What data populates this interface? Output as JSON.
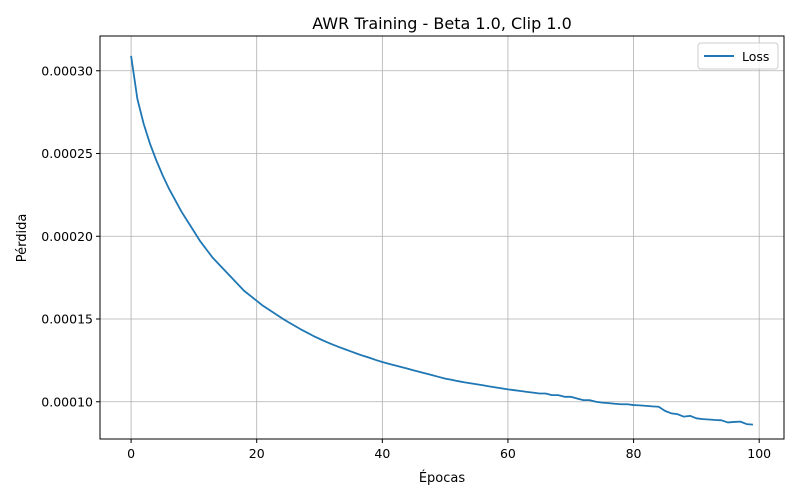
{
  "chart_data": {
    "type": "line",
    "title": "AWR Training - Beta 1.0, Clip 1.0",
    "xlabel": "Épocas",
    "ylabel": "Pérdida",
    "xlim": [
      -4.95,
      103.95
    ],
    "ylim": [
      7.75e-05,
      0.000321
    ],
    "xticks": [
      0,
      20,
      40,
      60,
      80,
      100
    ],
    "xtick_labels": [
      "0",
      "20",
      "40",
      "60",
      "80",
      "100"
    ],
    "yticks": [
      0.0001,
      0.00015,
      0.0002,
      0.00025,
      0.0003
    ],
    "ytick_labels": [
      "0.00010",
      "0.00015",
      "0.00020",
      "0.00025",
      "0.00030"
    ],
    "grid": true,
    "legend_position": "top-right",
    "colors": {
      "line": "#1f77b4",
      "grid": "#b0b0b0",
      "axes": "#000000",
      "legend_border": "#cccccc"
    },
    "series": [
      {
        "name": "Loss",
        "x": [
          0,
          1,
          2,
          3,
          4,
          5,
          6,
          7,
          8,
          9,
          10,
          11,
          12,
          13,
          14,
          15,
          16,
          17,
          18,
          19,
          20,
          21,
          22,
          23,
          24,
          25,
          26,
          27,
          28,
          29,
          30,
          31,
          32,
          33,
          34,
          35,
          36,
          37,
          38,
          39,
          40,
          41,
          42,
          43,
          44,
          45,
          46,
          47,
          48,
          49,
          50,
          51,
          52,
          53,
          54,
          55,
          56,
          57,
          58,
          59,
          60,
          61,
          62,
          63,
          64,
          65,
          66,
          67,
          68,
          69,
          70,
          71,
          72,
          73,
          74,
          75,
          76,
          77,
          78,
          79,
          80,
          81,
          82,
          83,
          84,
          85,
          86,
          87,
          88,
          89,
          90,
          91,
          92,
          93,
          94,
          95,
          96,
          97,
          98,
          99
        ],
        "values": [
          0.000309,
          0.000283,
          0.000268,
          0.000256,
          0.000246,
          0.000237,
          0.000229,
          0.000222,
          0.000215,
          0.000209,
          0.000203,
          0.000197,
          0.000192,
          0.000187,
          0.000183,
          0.000179,
          0.000175,
          0.000171,
          0.000167,
          0.000164,
          0.000161,
          0.000158,
          0.0001555,
          0.000153,
          0.0001505,
          0.0001482,
          0.000146,
          0.0001438,
          0.0001418,
          0.0001398,
          0.000138,
          0.0001363,
          0.0001347,
          0.0001332,
          0.0001318,
          0.0001304,
          0.000129,
          0.0001277,
          0.0001265,
          0.0001252,
          0.000124,
          0.000123,
          0.000122,
          0.000121,
          0.00012,
          0.000119,
          0.000118,
          0.000117,
          0.000116,
          0.000115,
          0.000114,
          0.0001133,
          0.0001125,
          0.0001118,
          0.0001112,
          0.0001106,
          0.00011,
          0.0001093,
          0.0001087,
          0.0001081,
          0.0001075,
          0.000107,
          0.0001065,
          0.000106,
          0.0001055,
          0.000105,
          0.000105,
          0.000104,
          0.000104,
          0.000103,
          0.000103,
          0.000102,
          0.000101,
          0.000101,
          0.0001,
          9.95e-05,
          9.92e-05,
          9.88e-05,
          9.85e-05,
          9.85e-05,
          9.8e-05,
          9.78e-05,
          9.75e-05,
          9.72e-05,
          9.7e-05,
          9.45e-05,
          9.3e-05,
          9.25e-05,
          9.1e-05,
          9.15e-05,
          9e-05,
          8.95e-05,
          8.93e-05,
          8.9e-05,
          8.88e-05,
          8.75e-05,
          8.78e-05,
          8.8e-05,
          8.65e-05,
          8.62e-05
        ]
      }
    ]
  }
}
